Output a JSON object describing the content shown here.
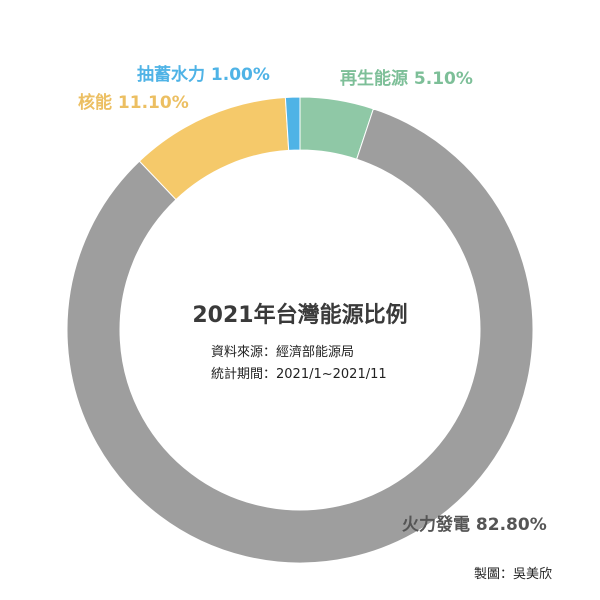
{
  "chart_data": {
    "type": "pie",
    "title": "2021年台灣能源比例",
    "subtitle_lines": [
      "資料來源：經濟部能源局",
      "統計期間：2021/1~2021/11"
    ],
    "categories": [
      "再生能源",
      "火力發電",
      "核能",
      "抽蓄水力"
    ],
    "values": [
      5.1,
      82.8,
      11.1,
      1.0
    ],
    "labels": [
      "再生能源 5.10%",
      "火力發電 82.80%",
      "核能 11.10%",
      "抽蓄水力 1.00%"
    ],
    "colors": [
      "#8fc8a6",
      "#9e9e9e",
      "#f5c96a",
      "#4fb3e6"
    ],
    "label_colors": [
      "#7dbf98",
      "#555555",
      "#ecbf62",
      "#4fb3e6"
    ]
  },
  "credit": "製圖：吳美欣"
}
